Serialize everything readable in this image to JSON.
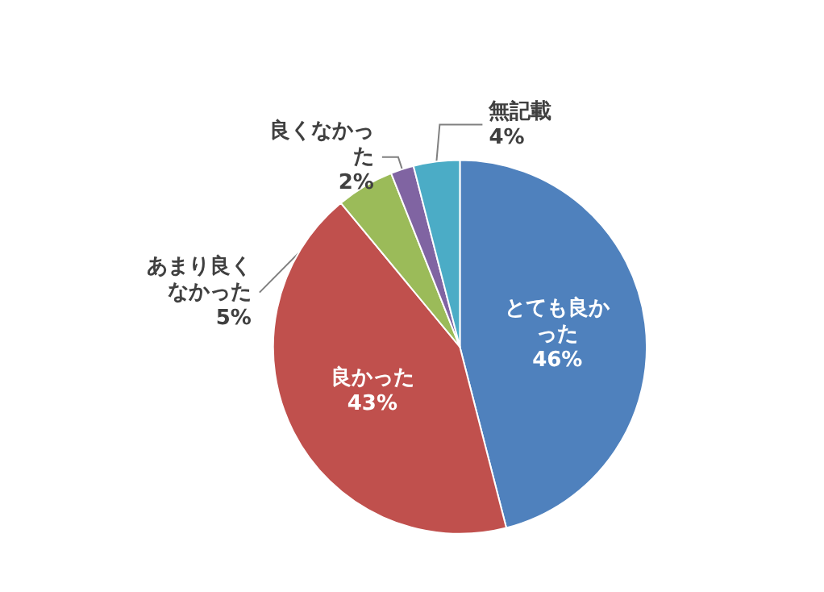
{
  "chart_data": {
    "type": "pie",
    "categories": [
      "とても良かった",
      "良かった",
      "あまり良くなかった",
      "良くなかった",
      "無記載"
    ],
    "values": [
      46,
      43,
      5,
      2,
      4
    ],
    "value_labels": [
      "46%",
      "43%",
      "5%",
      "2%",
      "4%"
    ],
    "colors": [
      "#4f81bd",
      "#c0504d",
      "#9bbb59",
      "#8064a2",
      "#4bacc6"
    ],
    "legend": false
  }
}
